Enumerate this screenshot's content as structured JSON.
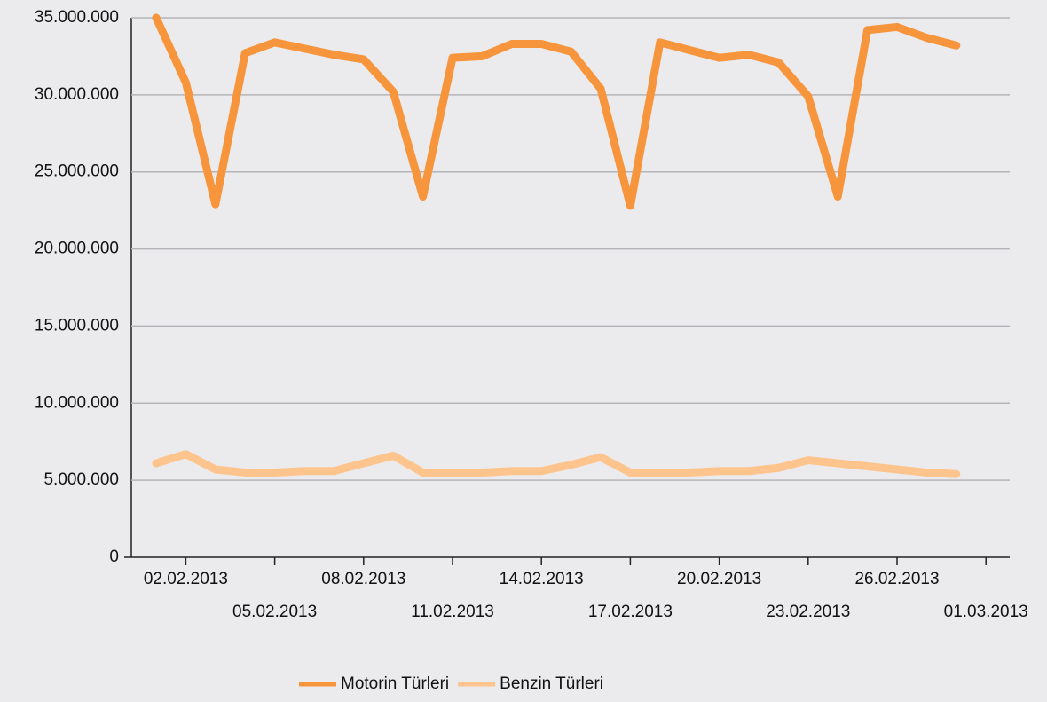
{
  "chart_data": {
    "type": "line",
    "x": [
      "01.02.2013",
      "02.02.2013",
      "03.02.2013",
      "04.02.2013",
      "05.02.2013",
      "06.02.2013",
      "07.02.2013",
      "08.02.2013",
      "09.02.2013",
      "10.02.2013",
      "11.02.2013",
      "12.02.2013",
      "13.02.2013",
      "14.02.2013",
      "15.02.2013",
      "16.02.2013",
      "17.02.2013",
      "18.02.2013",
      "19.02.2013",
      "20.02.2013",
      "21.02.2013",
      "22.02.2013",
      "23.02.2013",
      "24.02.2013",
      "25.02.2013",
      "26.02.2013",
      "27.02.2013",
      "28.02.2013"
    ],
    "series": [
      {
        "name": "Motorin Türleri",
        "color": "#f7953d",
        "values": [
          35000000,
          30800000,
          22900000,
          32700000,
          33400000,
          33000000,
          32600000,
          32300000,
          30200000,
          23400000,
          32400000,
          32500000,
          33300000,
          33300000,
          32800000,
          30400000,
          22800000,
          33400000,
          32900000,
          32400000,
          32600000,
          32100000,
          29900000,
          23400000,
          34200000,
          34400000,
          33700000,
          33200000
        ]
      },
      {
        "name": "Benzin Türleri",
        "color": "#fdc48e",
        "values": [
          6100000,
          6700000,
          5700000,
          5500000,
          5500000,
          5600000,
          5600000,
          6100000,
          6600000,
          5500000,
          5500000,
          5500000,
          5600000,
          5600000,
          6000000,
          6500000,
          5500000,
          5500000,
          5500000,
          5600000,
          5600000,
          5800000,
          6300000,
          6100000,
          5900000,
          5700000,
          5500000,
          5400000
        ]
      }
    ],
    "xticks": [
      "02.02.2013",
      "05.02.2013",
      "08.02.2013",
      "11.02.2013",
      "14.02.2013",
      "17.02.2013",
      "20.02.2013",
      "23.02.2013",
      "26.02.2013",
      "01.03.2013"
    ],
    "ylim": [
      0,
      35000000
    ],
    "yticks": [
      0,
      {
        "value": 5000000,
        "label": "5.000.000"
      },
      {
        "value": 10000000,
        "label": "10.000.000"
      },
      {
        "value": 15000000,
        "label": "15.000.000"
      },
      {
        "value": 20000000,
        "label": "20.000.000"
      },
      {
        "value": 25000000,
        "label": "25.000.000"
      },
      {
        "value": 30000000,
        "label": "30.000.000"
      },
      {
        "value": 35000000,
        "label": "35.000.000"
      }
    ],
    "grid": true,
    "legend": "bottom"
  }
}
